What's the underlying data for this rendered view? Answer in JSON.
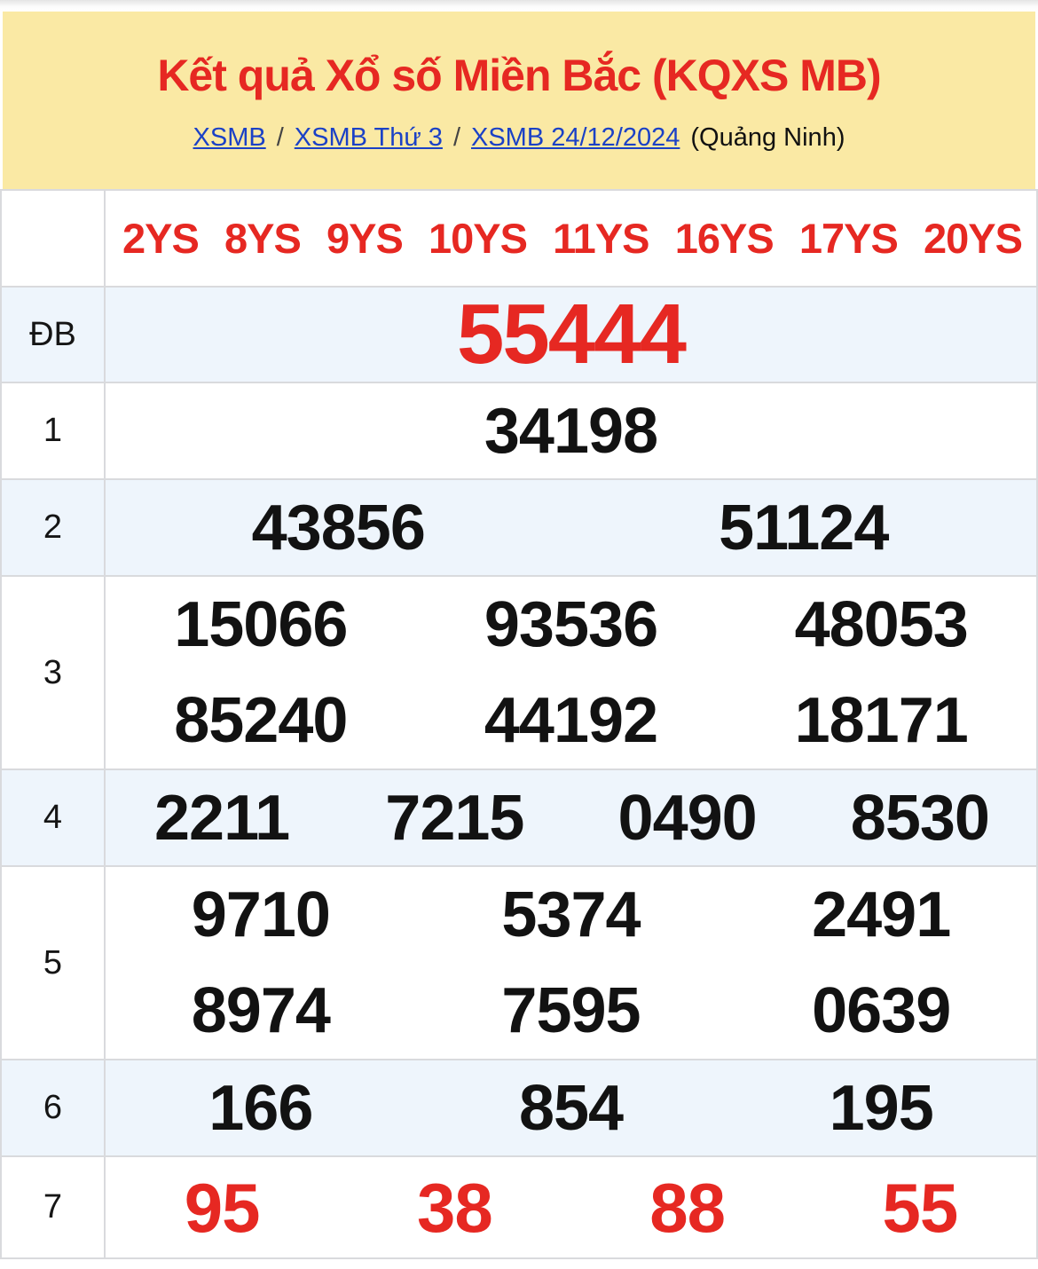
{
  "header": {
    "title": "Kết quả Xổ số Miền Bắc (KQXS MB)",
    "breadcrumb": {
      "links": [
        "XSMB",
        "XSMB Thứ 3",
        "XSMB 24/12/2024"
      ],
      "separator": "/",
      "suffix": "(Quảng Ninh)"
    }
  },
  "columns_header": [
    "2YS",
    "8YS",
    "9YS",
    "10YS",
    "11YS",
    "16YS",
    "17YS",
    "20YS"
  ],
  "results": {
    "special": {
      "label": "ĐB",
      "number": "55444"
    },
    "rows": [
      {
        "label": "1",
        "lines": [
          [
            "34198"
          ]
        ]
      },
      {
        "label": "2",
        "lines": [
          [
            "43856",
            "51124"
          ]
        ]
      },
      {
        "label": "3",
        "lines": [
          [
            "15066",
            "93536",
            "48053"
          ],
          [
            "85240",
            "44192",
            "18171"
          ]
        ]
      },
      {
        "label": "4",
        "lines": [
          [
            "2211",
            "7215",
            "0490",
            "8530"
          ]
        ]
      },
      {
        "label": "5",
        "lines": [
          [
            "9710",
            "5374",
            "2491"
          ],
          [
            "8974",
            "7595",
            "0639"
          ]
        ]
      },
      {
        "label": "6",
        "lines": [
          [
            "166",
            "854",
            "195"
          ]
        ]
      },
      {
        "label": "7",
        "lines": [
          [
            "95",
            "38",
            "88",
            "55"
          ]
        ]
      }
    ]
  },
  "colors": {
    "accent_red": "#e62822",
    "link_blue": "#1b41c6",
    "header_yellow": "#fae9a4",
    "alt_row_blue": "#eef5fc",
    "border_gray": "#d9dadd"
  }
}
